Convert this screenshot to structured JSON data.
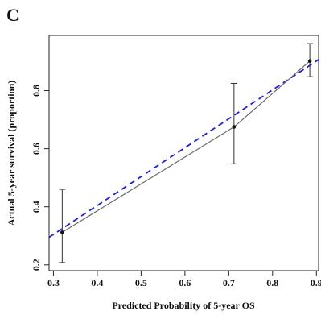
{
  "panel_label": "C",
  "chart_data": {
    "type": "line",
    "xlabel": "Predicted Probability of 5-year OS",
    "ylabel": "Actual 5-year survival (proportion)",
    "xlim": [
      0.29,
      0.905
    ],
    "ylim": [
      0.18,
      0.99
    ],
    "xticks": [
      "0.3",
      "0.4",
      "0.5",
      "0.6",
      "0.7",
      "0.8",
      "0.9"
    ],
    "yticks": [
      "0.2",
      "0.4",
      "0.6",
      "0.8"
    ],
    "grid": false,
    "legend": "none",
    "series": [
      {
        "style": "solid",
        "color": "#6b6b6b",
        "x": [
          0.32,
          0.712,
          0.885
        ],
        "y": [
          0.312,
          0.675,
          0.902
        ],
        "error_low": [
          0.208,
          0.548,
          0.848
        ],
        "error_high": [
          0.46,
          0.825,
          0.962
        ]
      },
      {
        "style": "dashed",
        "color": "#1f1fd6",
        "kind": "reference",
        "x": [
          0.29,
          0.905
        ],
        "y": [
          0.295,
          0.907
        ]
      }
    ]
  }
}
